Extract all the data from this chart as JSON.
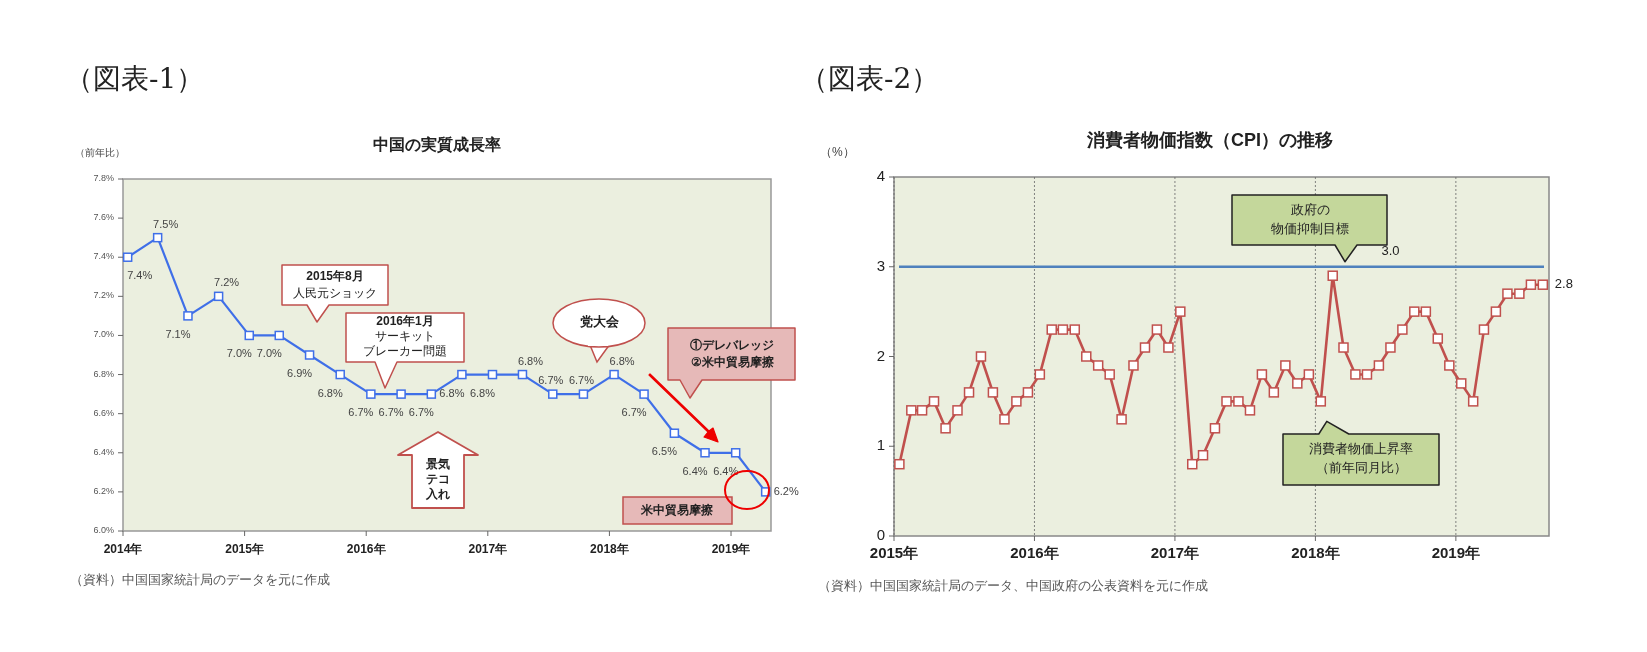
{
  "chart_data": [
    {
      "type": "line",
      "title": "中国の実質成長率",
      "ylabel": "（前年比）",
      "x": [
        "2014-01-15",
        "2014-04-15",
        "2014-07-15",
        "2014-10-15",
        "2015-01-15",
        "2015-04-15",
        "2015-07-15",
        "2015-10-15",
        "2016-01-15",
        "2016-04-15",
        "2016-07-15",
        "2016-10-15",
        "2017-01-15",
        "2017-04-15",
        "2017-07-15",
        "2017-10-15",
        "2018-01-15",
        "2018-04-15",
        "2018-07-15",
        "2018-10-15",
        "2019-01-15",
        "2019-04-15"
      ],
      "series": [
        {
          "color": "#3f6fe8",
          "values": [
            7.4,
            7.5,
            7.1,
            7.2,
            7.0,
            7.0,
            6.9,
            6.8,
            6.7,
            6.7,
            6.7,
            6.8,
            6.8,
            6.8,
            6.7,
            6.7,
            6.8,
            6.7,
            6.5,
            6.4,
            6.4,
            6.2
          ],
          "value_labels": [
            "7.4%",
            "7.5%",
            "7.1%",
            "7.2%",
            "7.0%",
            "7.0%",
            "6.9%",
            "6.8%",
            "6.7%",
            "6.7%",
            "6.7%",
            "6.8%",
            "6.8%",
            "6.8%",
            "6.7%",
            "6.7%",
            "6.8%",
            "6.7%",
            "6.5%",
            "6.4%",
            "6.4%",
            "6.2%"
          ]
        }
      ],
      "marker": "square",
      "xlim": [
        "2014-01-01",
        "2019-05-01"
      ],
      "xticks": [
        {
          "value": "2014-01-01",
          "label": "2014年"
        },
        {
          "value": "2015-01-01",
          "label": "2015年"
        },
        {
          "value": "2016-01-01",
          "label": "2016年"
        },
        {
          "value": "2017-01-01",
          "label": "2017年"
        },
        {
          "value": "2018-01-01",
          "label": "2018年"
        },
        {
          "value": "2019-01-01",
          "label": "2019年"
        }
      ],
      "ylim": [
        6.0,
        7.8
      ],
      "yticks": [
        {
          "value": 6.0,
          "label": "6.0%"
        },
        {
          "value": 6.2,
          "label": "6.2%"
        },
        {
          "value": 6.4,
          "label": "6.4%"
        },
        {
          "value": 6.6,
          "label": "6.6%"
        },
        {
          "value": 6.8,
          "label": "6.8%"
        },
        {
          "value": 7.0,
          "label": "7.0%"
        },
        {
          "value": 7.2,
          "label": "7.2%"
        },
        {
          "value": 7.4,
          "label": "7.4%"
        },
        {
          "value": 7.6,
          "label": "7.6%"
        },
        {
          "value": 7.8,
          "label": "7.8%"
        }
      ],
      "annotations": [
        "（図表-1）",
        "2015年8月人民元ショック",
        "2016年1月サーキットブレーカー問題",
        "党大会",
        "①デレバレッジ②米中貿易摩擦",
        "景気テコ入れ",
        "米中貿易摩擦",
        "（資料）中国国家統計局のデータを元に作成"
      ]
    },
    {
      "type": "line",
      "title": "消費者物価指数（CPI）の推移",
      "ylabel": "（%）",
      "x": [
        "2015-01-15",
        "2015-02-15",
        "2015-03-15",
        "2015-04-15",
        "2015-05-15",
        "2015-06-15",
        "2015-07-15",
        "2015-08-15",
        "2015-09-15",
        "2015-10-15",
        "2015-11-15",
        "2015-12-15",
        "2016-01-15",
        "2016-02-15",
        "2016-03-15",
        "2016-04-15",
        "2016-05-15",
        "2016-06-15",
        "2016-07-15",
        "2016-08-15",
        "2016-09-15",
        "2016-10-15",
        "2016-11-15",
        "2016-12-15",
        "2017-01-15",
        "2017-02-15",
        "2017-03-15",
        "2017-04-15",
        "2017-05-15",
        "2017-06-15",
        "2017-07-15",
        "2017-08-15",
        "2017-09-15",
        "2017-10-15",
        "2017-11-15",
        "2017-12-15",
        "2018-01-15",
        "2018-02-15",
        "2018-03-15",
        "2018-04-15",
        "2018-05-15",
        "2018-06-15",
        "2018-07-15",
        "2018-08-15",
        "2018-09-15",
        "2018-10-15",
        "2018-11-15",
        "2018-12-15",
        "2019-01-15",
        "2019-02-15",
        "2019-03-15",
        "2019-04-15",
        "2019-05-15",
        "2019-06-15",
        "2019-07-15",
        "2019-08-15"
      ],
      "series": [
        {
          "name": "消費者物価上昇率（前年同月比）",
          "color": "#c0504d",
          "values": [
            0.8,
            1.4,
            1.4,
            1.5,
            1.2,
            1.4,
            1.6,
            2.0,
            1.6,
            1.3,
            1.5,
            1.6,
            1.8,
            2.3,
            2.3,
            2.3,
            2.0,
            1.9,
            1.8,
            1.3,
            1.9,
            2.1,
            2.3,
            2.1,
            2.5,
            0.8,
            0.9,
            1.2,
            1.5,
            1.5,
            1.4,
            1.8,
            1.6,
            1.9,
            1.7,
            1.8,
            1.5,
            2.9,
            2.1,
            1.8,
            1.8,
            1.9,
            2.1,
            2.3,
            2.5,
            2.5,
            2.2,
            1.9,
            1.7,
            1.5,
            2.3,
            2.5,
            2.7,
            2.7,
            2.8,
            2.8
          ],
          "value_labels": [
            null,
            null,
            null,
            null,
            null,
            null,
            null,
            null,
            null,
            null,
            null,
            null,
            null,
            null,
            null,
            null,
            null,
            null,
            null,
            null,
            null,
            null,
            null,
            null,
            null,
            null,
            null,
            null,
            null,
            null,
            null,
            null,
            null,
            null,
            null,
            null,
            null,
            null,
            null,
            null,
            null,
            null,
            null,
            null,
            null,
            null,
            null,
            null,
            null,
            null,
            null,
            null,
            null,
            null,
            null,
            "2.8"
          ]
        }
      ],
      "marker": "square",
      "xlim": [
        "2015-01-01",
        "2019-08-31"
      ],
      "xticks": [
        {
          "value": "2015-01-01",
          "label": "2015年"
        },
        {
          "value": "2016-01-01",
          "label": "2016年"
        },
        {
          "value": "2017-01-01",
          "label": "2017年"
        },
        {
          "value": "2018-01-01",
          "label": "2018年"
        },
        {
          "value": "2019-01-01",
          "label": "2019年"
        }
      ],
      "ylim": [
        0,
        4
      ],
      "yticks": [
        0,
        1,
        2,
        3,
        4
      ],
      "grid": "x",
      "ref_lines": [
        {
          "axis": "y",
          "value": 3.0,
          "label": "政府の物価抑制目標",
          "color": "#4f81bd"
        }
      ],
      "annotations": [
        "（図表-2）",
        {
          "text": "3.0",
          "x": "2018-07-15",
          "y": 3.0
        },
        "（資料）中国国家統計局のデータ、中国政府の公表資料を元に作成"
      ]
    }
  ]
}
